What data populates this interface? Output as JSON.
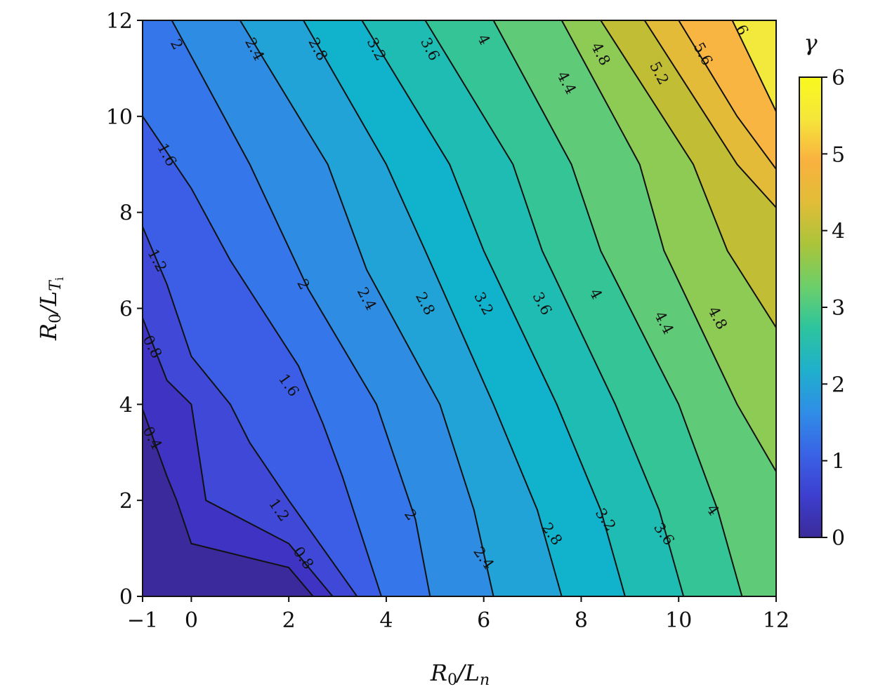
{
  "chart_data": {
    "type": "heatmap",
    "subtype": "filled-contour",
    "title": "",
    "xlabel": "R0/Ln",
    "ylabel": "R0/LTi",
    "xlim": [
      -1,
      12
    ],
    "ylim": [
      0,
      12
    ],
    "x_ticks": [
      "−1",
      "0",
      "2",
      "4",
      "6",
      "8",
      "10",
      "12"
    ],
    "x_tick_values": [
      -1,
      0,
      2,
      4,
      6,
      8,
      10,
      12
    ],
    "y_ticks": [
      "0",
      "2",
      "4",
      "6",
      "8",
      "10",
      "12"
    ],
    "y_tick_values": [
      0,
      2,
      4,
      6,
      8,
      10,
      12
    ],
    "grid": false,
    "colorbar": {
      "label": "γ",
      "range": [
        0,
        6
      ],
      "ticks": [
        "0",
        "1",
        "2",
        "3",
        "4",
        "5",
        "6"
      ],
      "tick_values": [
        0,
        1,
        2,
        3,
        4,
        5,
        6
      ],
      "colormap": "viridis-like",
      "stops": [
        "#3b2a9a",
        "#3d3fcf",
        "#3a63e6",
        "#2f8ee6",
        "#1fb0cc",
        "#2cc49e",
        "#6ccf6a",
        "#aac43a",
        "#e1bd38",
        "#f9b13f",
        "#f5e63a",
        "#f9f91e"
      ]
    },
    "fill_levels": [
      0,
      0.4,
      0.8,
      1.2,
      1.6,
      2.0,
      2.4,
      2.8,
      3.2,
      3.6,
      4.0,
      4.4,
      4.8,
      5.2,
      5.6,
      6.0
    ],
    "fill_colors": [
      "#3a2a9b",
      "#3e33c2",
      "#3f48d7",
      "#3c5ee6",
      "#3576ea",
      "#2e8de3",
      "#22a3d8",
      "#11b3cc",
      "#1ebcb3",
      "#35c496",
      "#5fca78",
      "#8ecb55",
      "#c1bd35",
      "#e3bb38",
      "#f9b541",
      "#f3e93d"
    ],
    "contours": [
      {
        "level": "0.4",
        "points": [
          [
            -1,
            3.9
          ],
          [
            -0.5,
            2.5
          ],
          [
            -0.3,
            2.0
          ],
          [
            0,
            1.1
          ],
          [
            2,
            0.6
          ],
          [
            2.5,
            0
          ]
        ],
        "label_at": [
          -0.8,
          3.3
        ]
      },
      {
        "level": "0.8",
        "points": [
          [
            -1,
            5.8
          ],
          [
            -0.5,
            4.5
          ],
          [
            0,
            4.0
          ],
          [
            0.3,
            2.0
          ],
          [
            2,
            1.1
          ],
          [
            2.9,
            0
          ]
        ],
        "label_at": [
          -0.8,
          5.2
        ]
      },
      {
        "level": "1.2",
        "points": [
          [
            -1,
            7.7
          ],
          [
            -0.5,
            6.5
          ],
          [
            0,
            5.0
          ],
          [
            0.8,
            4.0
          ],
          [
            1.2,
            3.2
          ],
          [
            2.0,
            2.0
          ],
          [
            3.4,
            0
          ]
        ],
        "label_at": [
          -0.7,
          7.0
        ]
      },
      {
        "level": "1.6",
        "points": [
          [
            -1,
            10.0
          ],
          [
            0,
            8.5
          ],
          [
            0.8,
            7.0
          ],
          [
            2.2,
            4.8
          ],
          [
            2.7,
            3.6
          ],
          [
            3.1,
            2.5
          ],
          [
            3.9,
            0
          ]
        ],
        "label_at": [
          -0.5,
          9.2
        ]
      },
      {
        "level": "2",
        "points": [
          [
            -0.4,
            12
          ],
          [
            1.2,
            9.0
          ],
          [
            2.4,
            6.4
          ],
          [
            3.8,
            4.0
          ],
          [
            4.6,
            1.6
          ],
          [
            4.9,
            0
          ]
        ],
        "label_at": [
          2.3,
          6.5
        ]
      },
      {
        "level": "2.4",
        "points": [
          [
            1.0,
            12
          ],
          [
            2.8,
            9.0
          ],
          [
            3.6,
            6.8
          ],
          [
            5.1,
            4.0
          ],
          [
            5.8,
            1.8
          ],
          [
            6.2,
            0
          ]
        ],
        "label_at": [
          3.6,
          6.2
        ]
      },
      {
        "level": "2.8",
        "points": [
          [
            2.3,
            12
          ],
          [
            4.0,
            9.0
          ],
          [
            4.8,
            7.2
          ],
          [
            6.2,
            4.0
          ],
          [
            7.1,
            1.8
          ],
          [
            7.6,
            0
          ]
        ],
        "label_at": [
          4.8,
          6.1
        ]
      },
      {
        "level": "3.2",
        "points": [
          [
            3.5,
            12
          ],
          [
            5.3,
            9.0
          ],
          [
            6.0,
            7.2
          ],
          [
            7.5,
            4.0
          ],
          [
            8.4,
            1.8
          ],
          [
            8.9,
            0
          ]
        ],
        "label_at": [
          6.0,
          6.1
        ]
      },
      {
        "level": "3.6",
        "points": [
          [
            4.8,
            12
          ],
          [
            6.6,
            9.0
          ],
          [
            7.2,
            7.2
          ],
          [
            8.7,
            4.0
          ],
          [
            9.6,
            1.8
          ],
          [
            10.1,
            0
          ]
        ],
        "label_at": [
          7.2,
          6.1
        ]
      },
      {
        "level": "4",
        "points": [
          [
            6.2,
            12
          ],
          [
            7.8,
            9.0
          ],
          [
            8.4,
            7.2
          ],
          [
            10.0,
            4.0
          ],
          [
            10.8,
            1.8
          ],
          [
            11.3,
            0
          ]
        ],
        "label_at": [
          8.3,
          6.3
        ]
      },
      {
        "level": "4.4",
        "points": [
          [
            7.6,
            12
          ],
          [
            9.2,
            9.0
          ],
          [
            9.7,
            7.2
          ],
          [
            11.2,
            4.0
          ],
          [
            12,
            2.6
          ]
        ],
        "label_at": [
          9.7,
          5.7
        ]
      },
      {
        "level": "4.8",
        "points": [
          [
            8.4,
            12
          ],
          [
            10.3,
            9.0
          ],
          [
            11.0,
            7.2
          ],
          [
            12,
            5.6
          ]
        ],
        "label_at": [
          10.8,
          5.8
        ]
      },
      {
        "level": "5.2",
        "points": [
          [
            9.3,
            12
          ],
          [
            11.2,
            9.0
          ],
          [
            12,
            8.1
          ]
        ],
        "label_at": [
          9.6,
          10.9
        ]
      },
      {
        "level": "5.6",
        "points": [
          [
            10.0,
            12
          ],
          [
            11.2,
            10.0
          ],
          [
            12,
            8.9
          ]
        ],
        "label_at": [
          10.5,
          11.3
        ]
      },
      {
        "level": "6",
        "points": [
          [
            11.1,
            12
          ],
          [
            12,
            10.1
          ]
        ],
        "label_at": [
          11.3,
          11.8
        ]
      }
    ],
    "top_labels": [
      {
        "text": "2",
        "at": [
          -0.3,
          11.5
        ]
      },
      {
        "text": "2.4",
        "at": [
          1.3,
          11.4
        ]
      },
      {
        "text": "2.8",
        "at": [
          2.6,
          11.4
        ]
      },
      {
        "text": "3.2",
        "at": [
          3.8,
          11.4
        ]
      },
      {
        "text": "3.6",
        "at": [
          4.9,
          11.4
        ]
      },
      {
        "text": "4",
        "at": [
          6.0,
          11.6
        ]
      },
      {
        "text": "4.4",
        "at": [
          7.7,
          10.7
        ]
      },
      {
        "text": "4.8",
        "at": [
          8.4,
          11.3
        ]
      }
    ],
    "bottom_labels": [
      {
        "text": "1.2",
        "at": [
          1.8,
          1.8
        ]
      },
      {
        "text": "0.8",
        "at": [
          2.3,
          0.8
        ]
      },
      {
        "text": "2",
        "at": [
          4.5,
          1.7
        ]
      },
      {
        "text": "2.4",
        "at": [
          6.0,
          0.8
        ]
      },
      {
        "text": "2.8",
        "at": [
          7.4,
          1.3
        ]
      },
      {
        "text": "3.2",
        "at": [
          8.5,
          1.6
        ]
      },
      {
        "text": "3.6",
        "at": [
          9.7,
          1.3
        ]
      },
      {
        "text": "4",
        "at": [
          10.7,
          1.8
        ]
      },
      {
        "text": "1.6",
        "at": [
          2.0,
          4.4
        ]
      }
    ]
  }
}
